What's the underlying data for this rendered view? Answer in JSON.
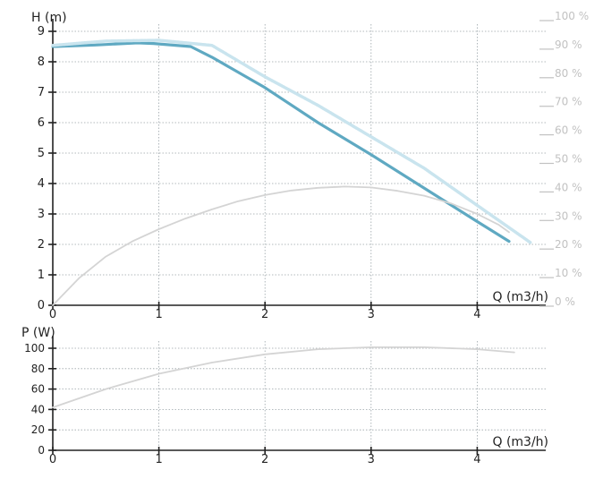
{
  "chart_data": [
    {
      "type": "line",
      "ylabel": "H (m)",
      "xlabel": "Q (m3/h)",
      "xlim": [
        0,
        4.4
      ],
      "ylim": [
        0,
        9
      ],
      "x_ticks": [
        "0",
        "1",
        "2",
        "3",
        "4"
      ],
      "y_ticks": [
        "0",
        "1",
        "2",
        "3",
        "4",
        "5",
        "6",
        "7",
        "8",
        "9"
      ],
      "y2_ticks": [
        "0 %",
        "10 %",
        "20 %",
        "30 %",
        "40 %",
        "50 %",
        "60 %",
        "70 %",
        "80 %",
        "90 %",
        "100 %"
      ],
      "grid": true,
      "series": [
        {
          "axis": "left",
          "color": "#5fa9c2",
          "points": [
            [
              0,
              8.5
            ],
            [
              0.4,
              8.55
            ],
            [
              0.8,
              8.62
            ],
            [
              0.95,
              8.6
            ],
            [
              1.3,
              8.5
            ],
            [
              1.5,
              8.15
            ],
            [
              2.0,
              7.15
            ],
            [
              2.5,
              6.0
            ],
            [
              3.0,
              4.95
            ],
            [
              3.5,
              3.85
            ],
            [
              4.0,
              2.75
            ],
            [
              4.3,
              2.1
            ]
          ]
        },
        {
          "axis": "right",
          "color": "#c9e4ee",
          "points": [
            [
              0,
              91
            ],
            [
              0.5,
              92.5
            ],
            [
              1.0,
              92.8
            ],
            [
              1.5,
              91
            ],
            [
              2.0,
              80
            ],
            [
              2.5,
              70
            ],
            [
              3.0,
              59
            ],
            [
              3.5,
              48
            ],
            [
              4.0,
              35
            ],
            [
              4.5,
              22
            ]
          ]
        },
        {
          "axis": "left",
          "color": "#d4d4d4",
          "points": [
            [
              0,
              0
            ],
            [
              0.25,
              0.9
            ],
            [
              0.5,
              1.6
            ],
            [
              0.75,
              2.1
            ],
            [
              1.0,
              2.5
            ],
            [
              1.25,
              2.85
            ],
            [
              1.5,
              3.15
            ],
            [
              1.75,
              3.42
            ],
            [
              2.0,
              3.62
            ],
            [
              2.25,
              3.77
            ],
            [
              2.5,
              3.86
            ],
            [
              2.75,
              3.9
            ],
            [
              3.0,
              3.87
            ],
            [
              3.25,
              3.76
            ],
            [
              3.5,
              3.6
            ],
            [
              3.75,
              3.35
            ],
            [
              4.0,
              3.0
            ],
            [
              4.2,
              2.65
            ],
            [
              4.3,
              2.4
            ]
          ]
        }
      ]
    },
    {
      "type": "line",
      "ylabel": "P (W)",
      "xlabel": "Q (m3/h)",
      "xlim": [
        0,
        4.4
      ],
      "ylim": [
        0,
        100
      ],
      "x_ticks": [
        "0",
        "1",
        "2",
        "3",
        "4"
      ],
      "y_ticks": [
        "0",
        "20",
        "40",
        "60",
        "80",
        "100"
      ],
      "grid": true,
      "series": [
        {
          "color": "#d4d4d4",
          "points": [
            [
              0,
              42
            ],
            [
              0.5,
              60
            ],
            [
              1.0,
              75
            ],
            [
              1.5,
              86
            ],
            [
              2.0,
              94
            ],
            [
              2.5,
              99
            ],
            [
              3.0,
              101
            ],
            [
              3.5,
              101
            ],
            [
              4.0,
              99
            ],
            [
              4.35,
              96
            ]
          ]
        }
      ]
    }
  ]
}
